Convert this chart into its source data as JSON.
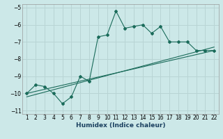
{
  "title": "",
  "xlabel": "Humidex (Indice chaleur)",
  "ylabel": "",
  "background_color": "#cce8e8",
  "grid_color": "#b8d4d4",
  "line_color": "#1a6b5a",
  "xlim": [
    0.5,
    22.5
  ],
  "ylim": [
    -11.2,
    -4.8
  ],
  "xticks": [
    1,
    2,
    3,
    4,
    5,
    6,
    7,
    8,
    9,
    10,
    11,
    12,
    13,
    14,
    15,
    16,
    17,
    18,
    19,
    20,
    21,
    22
  ],
  "yticks": [
    -11,
    -10,
    -9,
    -8,
    -7,
    -6,
    -5
  ],
  "series1_x": [
    1,
    2,
    3,
    4,
    5,
    6,
    7,
    8,
    9,
    10,
    11,
    12,
    13,
    14,
    15,
    16,
    17,
    18,
    19,
    20,
    21,
    22
  ],
  "series1_y": [
    -10.0,
    -9.5,
    -9.6,
    -10.0,
    -10.6,
    -10.2,
    -9.0,
    -9.3,
    -6.7,
    -6.6,
    -5.2,
    -6.2,
    -6.1,
    -6.0,
    -6.5,
    -6.1,
    -7.0,
    -7.0,
    -7.0,
    -7.5,
    -7.5,
    -7.5
  ],
  "series2_x": [
    1,
    22
  ],
  "series2_y": [
    -10.0,
    -7.5
  ],
  "series3_x": [
    1,
    22
  ],
  "series3_y": [
    -10.2,
    -7.3
  ]
}
